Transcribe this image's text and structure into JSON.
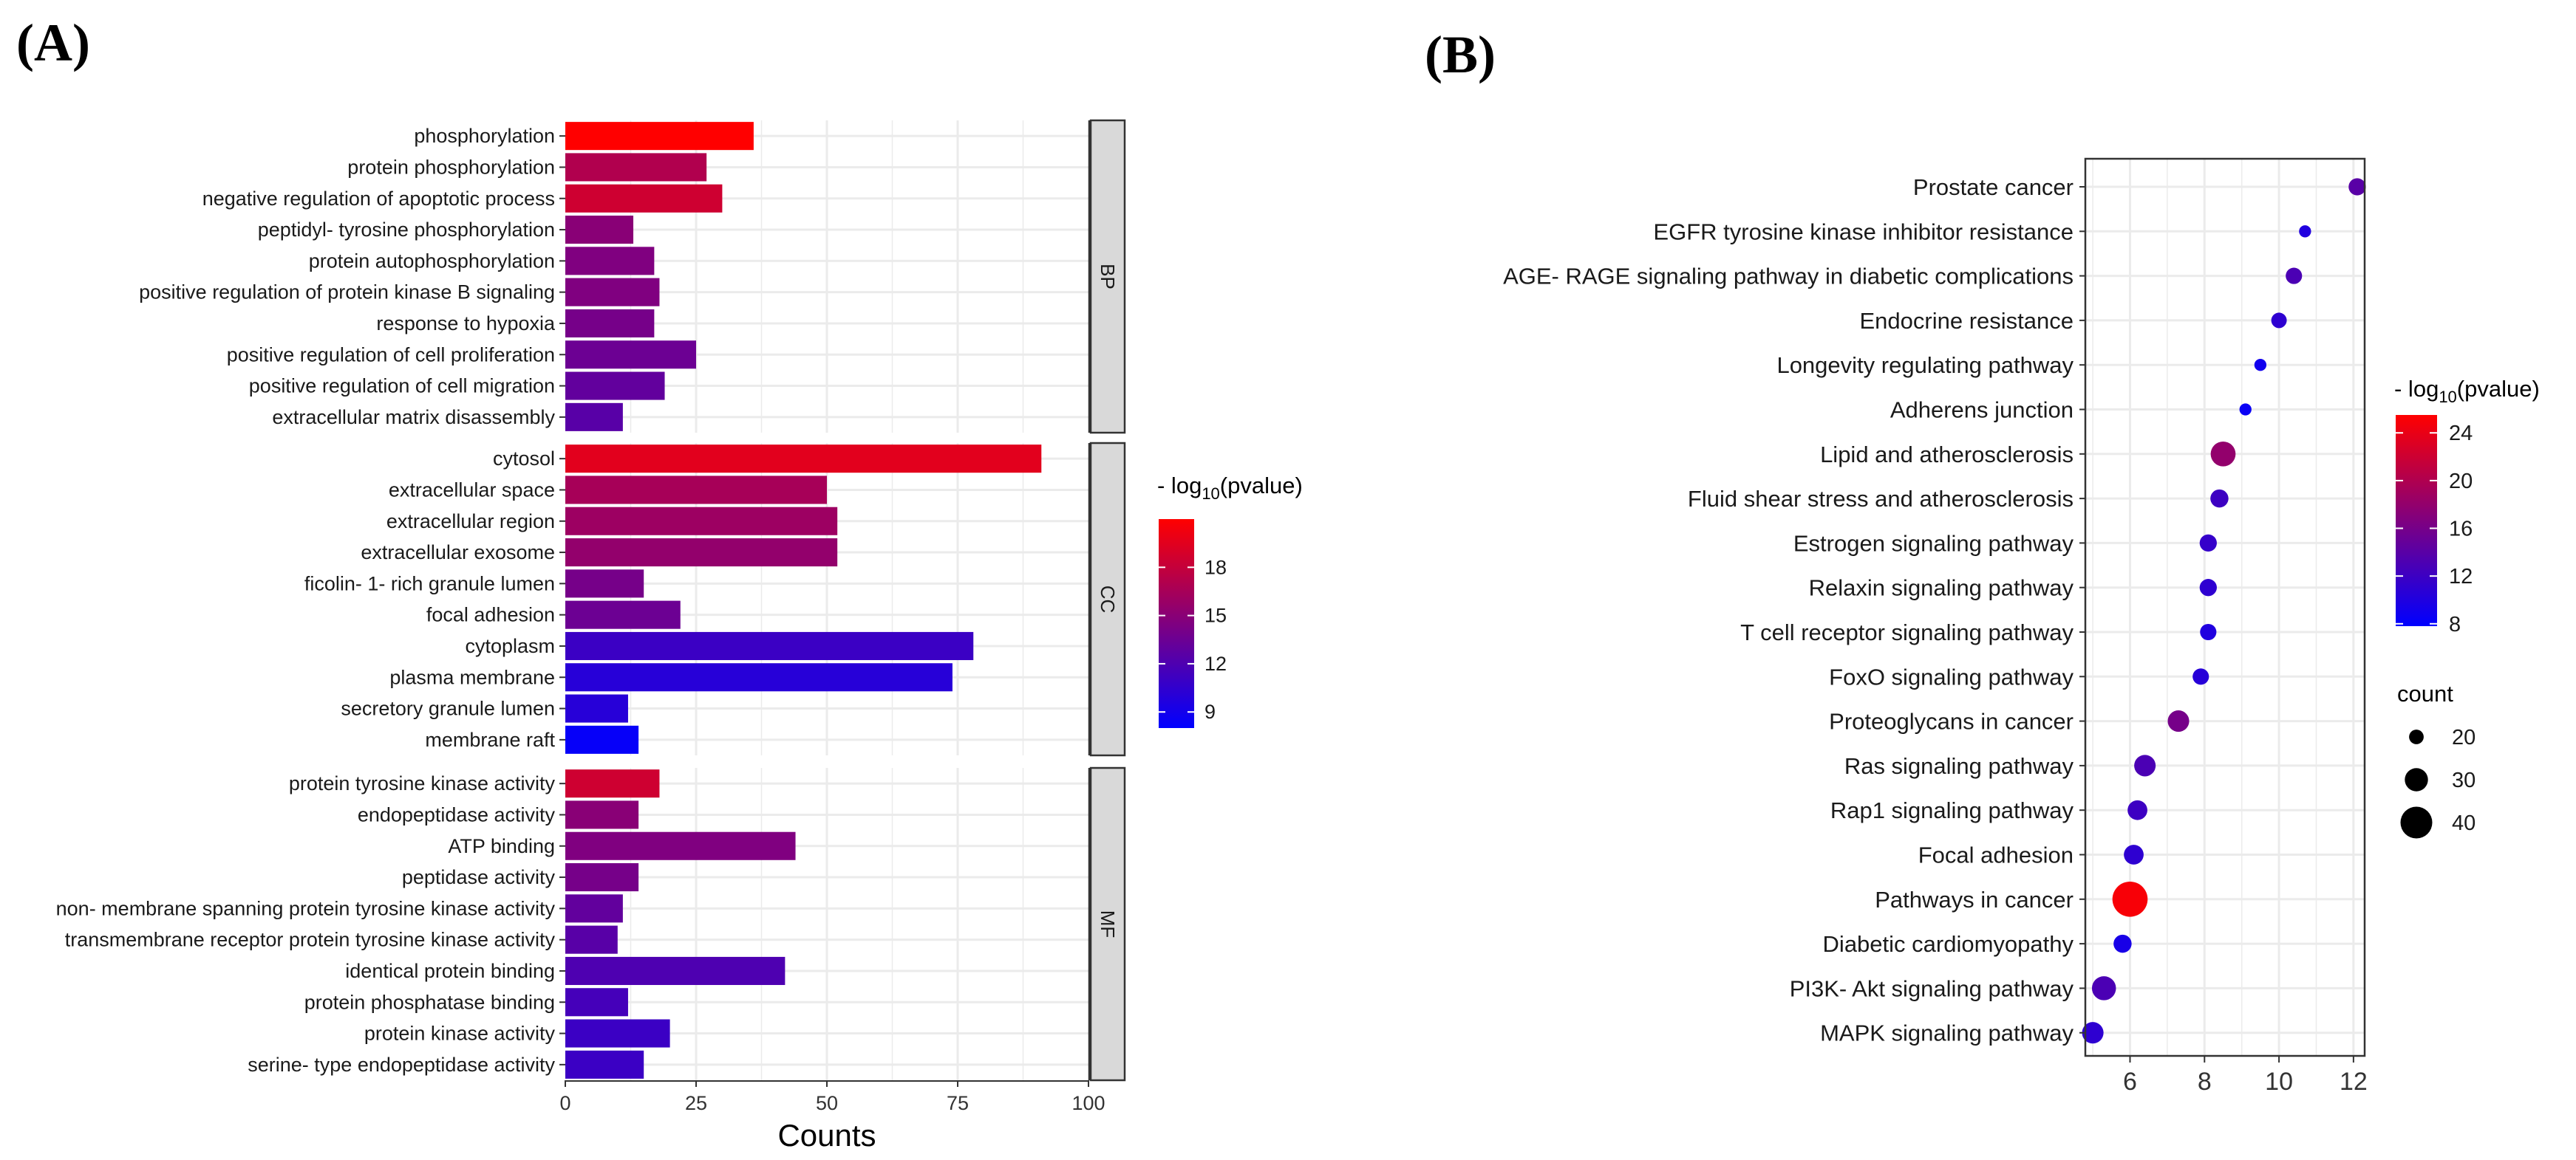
{
  "panels": {
    "a_label": "(A)",
    "b_label": "(B)"
  },
  "chart_data": [
    {
      "type": "bar",
      "orientation": "horizontal",
      "xlabel": "Counts",
      "xlim": [
        0,
        100
      ],
      "xticks": [
        0,
        25,
        50,
        75,
        100
      ],
      "color_legend": {
        "title_prefix": "- log",
        "title_sub": "10",
        "title_suffix": "(pvalue)",
        "range": [
          8,
          21
        ],
        "ticks": [
          9,
          12,
          15,
          18
        ],
        "low_color": "#0000ff",
        "high_color": "#ff0000"
      },
      "facets": [
        {
          "name": "BP",
          "items": [
            {
              "term": "phosphorylation",
              "count": 36,
              "pvalue": 21
            },
            {
              "term": "protein phosphorylation",
              "count": 27,
              "pvalue": 17
            },
            {
              "term": "negative regulation of apoptotic process",
              "count": 30,
              "pvalue": 18.5
            },
            {
              "term": "peptidyl- tyrosine phosphorylation",
              "count": 13,
              "pvalue": 15
            },
            {
              "term": "protein autophosphorylation",
              "count": 17,
              "pvalue": 14.5
            },
            {
              "term": "positive regulation of protein kinase B signaling",
              "count": 18,
              "pvalue": 14.5
            },
            {
              "term": "response to hypoxia",
              "count": 17,
              "pvalue": 14
            },
            {
              "term": "positive regulation of cell proliferation",
              "count": 25,
              "pvalue": 13.5
            },
            {
              "term": "positive regulation of cell migration",
              "count": 19,
              "pvalue": 13
            },
            {
              "term": "extracellular matrix disassembly",
              "count": 11,
              "pvalue": 12.5
            }
          ]
        },
        {
          "name": "CC",
          "items": [
            {
              "term": "cytosol",
              "count": 91,
              "pvalue": 19.5
            },
            {
              "term": "extracellular space",
              "count": 50,
              "pvalue": 16.5
            },
            {
              "term": "extracellular region",
              "count": 52,
              "pvalue": 16
            },
            {
              "term": "extracellular exosome",
              "count": 52,
              "pvalue": 15.5
            },
            {
              "term": "ficolin- 1- rich granule lumen",
              "count": 15,
              "pvalue": 14
            },
            {
              "term": "focal adhesion",
              "count": 22,
              "pvalue": 13.5
            },
            {
              "term": "cytoplasm",
              "count": 78,
              "pvalue": 11
            },
            {
              "term": "plasma membrane",
              "count": 74,
              "pvalue": 10
            },
            {
              "term": "secretory granule lumen",
              "count": 12,
              "pvalue": 10
            },
            {
              "term": "membrane raft",
              "count": 14,
              "pvalue": 8.3
            }
          ]
        },
        {
          "name": "MF",
          "items": [
            {
              "term": "protein tyrosine kinase activity",
              "count": 18,
              "pvalue": 18.5
            },
            {
              "term": "endopeptidase activity",
              "count": 14,
              "pvalue": 15
            },
            {
              "term": "ATP binding",
              "count": 44,
              "pvalue": 14.5
            },
            {
              "term": "peptidase activity",
              "count": 14,
              "pvalue": 14
            },
            {
              "term": "non- membrane spanning protein tyrosine kinase activity",
              "count": 11,
              "pvalue": 13
            },
            {
              "term": "transmembrane receptor protein tyrosine kinase activity",
              "count": 10,
              "pvalue": 12.5
            },
            {
              "term": "identical protein binding",
              "count": 42,
              "pvalue": 12
            },
            {
              "term": "protein phosphatase binding",
              "count": 12,
              "pvalue": 11.5
            },
            {
              "term": "protein kinase activity",
              "count": 20,
              "pvalue": 11
            },
            {
              "term": "serine- type endopeptidase activity",
              "count": 15,
              "pvalue": 11
            }
          ]
        }
      ]
    },
    {
      "type": "scatter",
      "xlim": [
        4.8,
        12.3
      ],
      "xticks": [
        6,
        8,
        10,
        12
      ],
      "color_legend": {
        "title_prefix": "- log",
        "title_sub": "10",
        "title_suffix": "(pvalue)",
        "range": [
          7.8,
          25.5
        ],
        "ticks": [
          8,
          12,
          16,
          20,
          24
        ],
        "low_color": "#0000ff",
        "high_color": "#ff0000"
      },
      "size_legend": {
        "title": "count",
        "values": [
          20,
          30,
          40
        ]
      },
      "points": [
        {
          "term": "Prostate cancer",
          "x": 12.1,
          "pvalue": 14,
          "count": 23
        },
        {
          "term": "EGFR tyrosine kinase inhibitor resistance",
          "x": 10.7,
          "pvalue": 10,
          "count": 17
        },
        {
          "term": "AGE- RAGE signaling pathway in diabetic complications",
          "x": 10.4,
          "pvalue": 13,
          "count": 22
        },
        {
          "term": "Endocrine resistance",
          "x": 10.0,
          "pvalue": 11,
          "count": 21
        },
        {
          "term": "Longevity regulating pathway",
          "x": 9.5,
          "pvalue": 9,
          "count": 17
        },
        {
          "term": "Adherens junction",
          "x": 9.1,
          "pvalue": 8.5,
          "count": 17
        },
        {
          "term": "Lipid and atherosclerosis",
          "x": 8.5,
          "pvalue": 18,
          "count": 32
        },
        {
          "term": "Fluid shear stress and atherosclerosis",
          "x": 8.4,
          "pvalue": 12,
          "count": 24
        },
        {
          "term": "Estrogen signaling pathway",
          "x": 8.1,
          "pvalue": 11.5,
          "count": 23
        },
        {
          "term": "Relaxin signaling pathway",
          "x": 8.1,
          "pvalue": 11,
          "count": 23
        },
        {
          "term": "T cell receptor signaling pathway",
          "x": 8.1,
          "pvalue": 10,
          "count": 22
        },
        {
          "term": "FoxO signaling pathway",
          "x": 7.9,
          "pvalue": 10.5,
          "count": 22
        },
        {
          "term": "Proteoglycans in cancer",
          "x": 7.3,
          "pvalue": 16,
          "count": 28
        },
        {
          "term": "Ras signaling pathway",
          "x": 6.4,
          "pvalue": 13,
          "count": 28
        },
        {
          "term": "Rap1 signaling pathway",
          "x": 6.2,
          "pvalue": 12,
          "count": 26
        },
        {
          "term": "Focal adhesion",
          "x": 6.1,
          "pvalue": 11,
          "count": 26
        },
        {
          "term": "Pathways in cancer",
          "x": 6.0,
          "pvalue": 25,
          "count": 44
        },
        {
          "term": "Diabetic cardiomyopathy",
          "x": 5.8,
          "pvalue": 9.5,
          "count": 24
        },
        {
          "term": "PI3K- Akt signaling pathway",
          "x": 5.3,
          "pvalue": 13,
          "count": 31
        },
        {
          "term": "MAPK signaling pathway",
          "x": 5.0,
          "pvalue": 11,
          "count": 28
        }
      ]
    }
  ]
}
